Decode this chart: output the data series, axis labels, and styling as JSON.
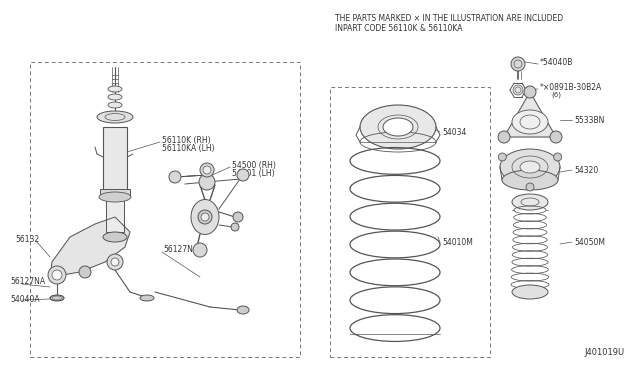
{
  "bg_color": "#ffffff",
  "draw_color": "#555555",
  "header_line1": "THE PARTS MARKED × IN THE ILLUSTRATION ARE INCLUDED",
  "header_line2": "INPART CODE 56110K & 56110KA",
  "diagram_id": "J401019U",
  "label_fs": 5.8,
  "header_fs": 5.5,
  "id_fs": 6.0
}
